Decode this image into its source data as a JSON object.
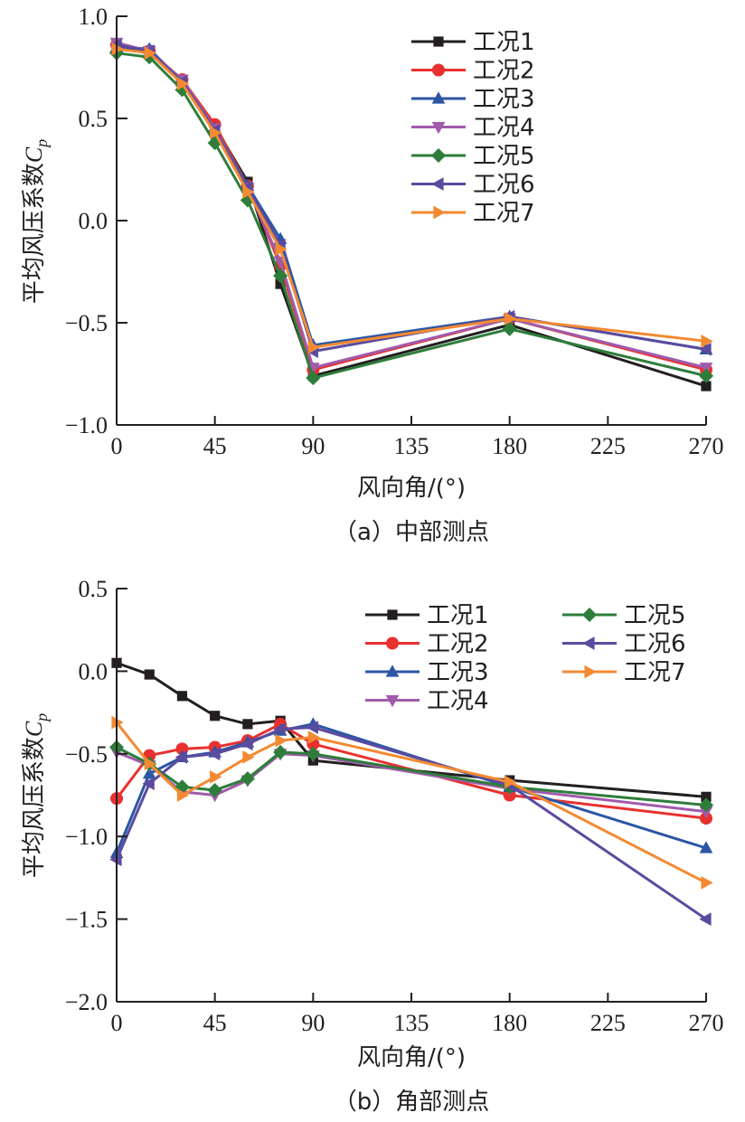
{
  "chart_data": [
    {
      "type": "line",
      "title": "",
      "caption": "（a）中部测点",
      "xlabel": "风向角/(°)",
      "ylabel": "平均风压系数",
      "ylabel_symbol": "C",
      "ylabel_sub": "p",
      "xlim": [
        0,
        270
      ],
      "ylim": [
        -1.0,
        1.0
      ],
      "xticks": [
        0,
        45,
        90,
        135,
        180,
        225,
        270
      ],
      "xtick_labels": [
        "0",
        "45",
        "90",
        "135",
        "180",
        "225",
        "270"
      ],
      "yticks": [
        -1.0,
        -0.5,
        0.0,
        0.5,
        1.0
      ],
      "ytick_labels": [
        "−1.0",
        "−0.5",
        "0.0",
        "0.5",
        "1.0"
      ],
      "grid": false,
      "legend_position": "top-right",
      "legend_columns": 1,
      "x": [
        0,
        15,
        30,
        45,
        60,
        75,
        90,
        180,
        270
      ],
      "series": [
        {
          "name": "工况1",
          "color": "#231f20",
          "marker": "square",
          "values": [
            0.85,
            0.83,
            0.68,
            0.46,
            0.19,
            -0.31,
            -0.76,
            -0.51,
            -0.81
          ]
        },
        {
          "name": "工况2",
          "color": "#e8312f",
          "marker": "circle",
          "values": [
            0.86,
            0.83,
            0.69,
            0.47,
            0.17,
            -0.22,
            -0.73,
            -0.48,
            -0.73
          ]
        },
        {
          "name": "工况3",
          "color": "#2b56a5",
          "marker": "triangle-up",
          "values": [
            0.85,
            0.84,
            0.68,
            0.45,
            0.17,
            -0.09,
            -0.61,
            -0.47,
            -0.63
          ]
        },
        {
          "name": "工况4",
          "color": "#a05bab",
          "marker": "triangle-down",
          "values": [
            0.87,
            0.83,
            0.69,
            0.45,
            0.16,
            -0.2,
            -0.72,
            -0.48,
            -0.72
          ]
        },
        {
          "name": "工况5",
          "color": "#2e7d3b",
          "marker": "diamond",
          "values": [
            0.82,
            0.8,
            0.64,
            0.38,
            0.1,
            -0.27,
            -0.77,
            -0.53,
            -0.76
          ]
        },
        {
          "name": "工况6",
          "color": "#5b4b9e",
          "marker": "triangle-left",
          "values": [
            0.86,
            0.83,
            0.68,
            0.44,
            0.16,
            -0.12,
            -0.64,
            -0.47,
            -0.63
          ]
        },
        {
          "name": "工况7",
          "color": "#f38a32",
          "marker": "triangle-right",
          "values": [
            0.84,
            0.82,
            0.67,
            0.43,
            0.14,
            -0.14,
            -0.62,
            -0.48,
            -0.59
          ]
        }
      ]
    },
    {
      "type": "line",
      "title": "",
      "caption": "（b）角部测点",
      "xlabel": "风向角/(°)",
      "ylabel": "平均风压系数",
      "ylabel_symbol": "C",
      "ylabel_sub": "p",
      "xlim": [
        0,
        270
      ],
      "ylim": [
        -2.0,
        0.5
      ],
      "xticks": [
        0,
        45,
        90,
        135,
        180,
        225,
        270
      ],
      "xtick_labels": [
        "0",
        "45",
        "90",
        "135",
        "180",
        "225",
        "270"
      ],
      "yticks": [
        -2.0,
        -1.5,
        -1.0,
        -0.5,
        0.0,
        0.5
      ],
      "ytick_labels": [
        "−2.0",
        "−1.5",
        "−1.0",
        "−0.5",
        "0.0",
        "0.5"
      ],
      "grid": false,
      "legend_position": "top-right",
      "legend_columns": 2,
      "x": [
        0,
        15,
        30,
        45,
        60,
        75,
        90,
        180,
        270
      ],
      "series": [
        {
          "name": "工况1",
          "color": "#231f20",
          "marker": "square",
          "values": [
            0.05,
            -0.02,
            -0.15,
            -0.27,
            -0.32,
            -0.3,
            -0.54,
            -0.66,
            -0.76
          ]
        },
        {
          "name": "工况2",
          "color": "#e8312f",
          "marker": "circle",
          "values": [
            -0.77,
            -0.51,
            -0.47,
            -0.46,
            -0.42,
            -0.32,
            -0.44,
            -0.75,
            -0.89
          ]
        },
        {
          "name": "工况3",
          "color": "#2b56a5",
          "marker": "triangle-up",
          "values": [
            -1.1,
            -0.62,
            -0.52,
            -0.49,
            -0.43,
            -0.36,
            -0.32,
            -0.7,
            -1.07
          ]
        },
        {
          "name": "工况4",
          "color": "#a05bab",
          "marker": "triangle-down",
          "values": [
            -0.49,
            -0.57,
            -0.73,
            -0.75,
            -0.66,
            -0.5,
            -0.51,
            -0.71,
            -0.85
          ]
        },
        {
          "name": "工况5",
          "color": "#2e7d3b",
          "marker": "diamond",
          "values": [
            -0.46,
            -0.56,
            -0.7,
            -0.72,
            -0.65,
            -0.49,
            -0.5,
            -0.7,
            -0.81
          ]
        },
        {
          "name": "工况6",
          "color": "#5b4b9e",
          "marker": "triangle-left",
          "values": [
            -1.14,
            -0.68,
            -0.52,
            -0.5,
            -0.44,
            -0.35,
            -0.34,
            -0.69,
            -1.5
          ]
        },
        {
          "name": "工况7",
          "color": "#f38a32",
          "marker": "triangle-right",
          "values": [
            -0.31,
            -0.56,
            -0.75,
            -0.64,
            -0.52,
            -0.42,
            -0.4,
            -0.67,
            -1.28
          ]
        }
      ]
    }
  ]
}
